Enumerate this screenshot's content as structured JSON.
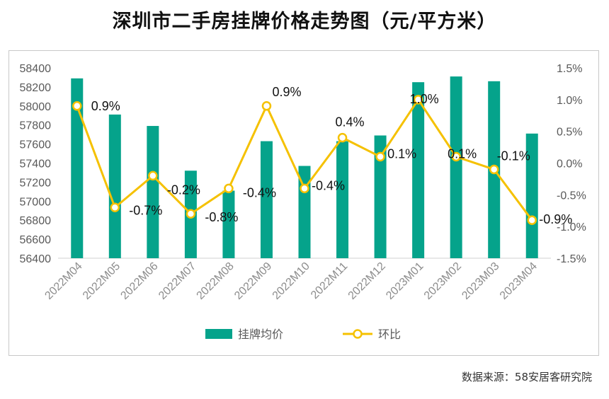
{
  "title": "深圳市二手房挂牌价格走势图（元/平方米）",
  "source": "数据来源：58安居客研究院",
  "chart_data": {
    "type": "bar",
    "categories": [
      "2022M04",
      "2022M05",
      "2022M06",
      "2022M07",
      "2022M08",
      "2022M09",
      "2022M10",
      "2022M11",
      "2022M12",
      "2023M01",
      "2023M02",
      "2023M03",
      "2023M04"
    ],
    "series": [
      {
        "name": "挂牌均价",
        "type": "bar",
        "axis": "left",
        "color": "#05a38b",
        "values": [
          58290,
          57910,
          57790,
          57320,
          57110,
          57630,
          57370,
          57630,
          57690,
          58250,
          58310,
          58260,
          57710
        ]
      },
      {
        "name": "环比",
        "type": "line",
        "axis": "right",
        "color": "#f5c100",
        "values": [
          0.9,
          -0.7,
          -0.2,
          -0.8,
          -0.4,
          0.9,
          -0.4,
          0.4,
          0.1,
          1.0,
          0.1,
          -0.1,
          -0.9
        ],
        "labels": [
          "0.9%",
          "-0.7%",
          "-0.2%",
          "-0.8%",
          "-0.4%",
          "0.9%",
          "-0.4%",
          "0.4%",
          "0.1%",
          "1.0%",
          "0.1%",
          "-0.1%",
          "-0.9%"
        ]
      }
    ],
    "y_left": {
      "min": 56400,
      "max": 58400,
      "ticks": [
        "56400",
        "56600",
        "56800",
        "57000",
        "57200",
        "57400",
        "57600",
        "57800",
        "58000",
        "58200",
        "58400"
      ]
    },
    "y_right": {
      "min": -1.5,
      "max": 1.5,
      "ticks": [
        "-1.5%",
        "-1.0%",
        "-0.5%",
        "0.0%",
        "0.5%",
        "1.0%",
        "1.5%"
      ]
    },
    "legend": {
      "position": "bottom"
    },
    "grid": false
  }
}
